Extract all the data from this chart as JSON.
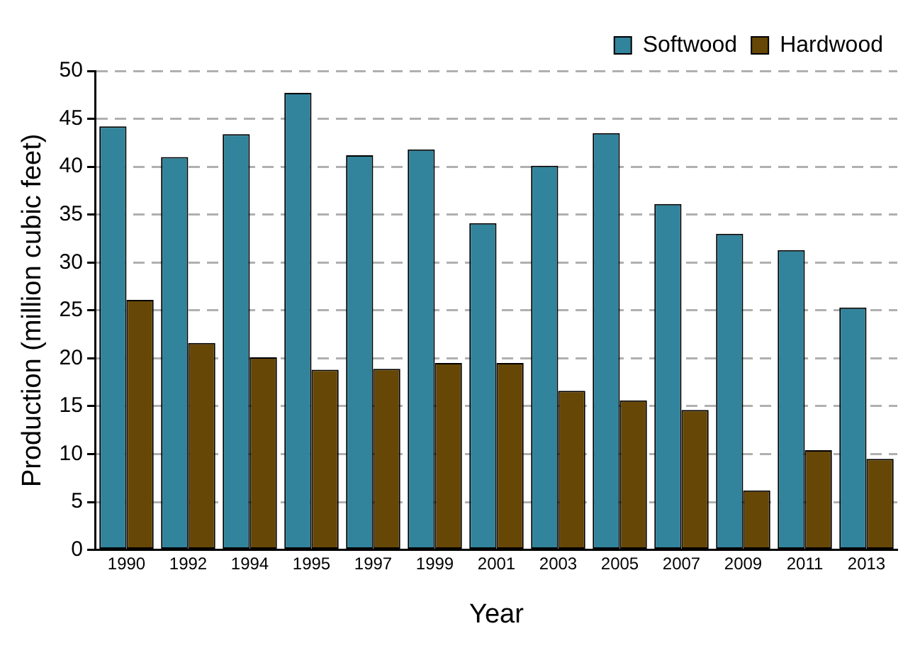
{
  "chart_data": {
    "type": "bar",
    "xlabel": "Year",
    "ylabel": "Production (million cubic feet)",
    "categories": [
      "1990",
      "1992",
      "1994",
      "1995",
      "1997",
      "1999",
      "2001",
      "2003",
      "2005",
      "2007",
      "2009",
      "2011",
      "2013"
    ],
    "series": [
      {
        "name": "Softwood",
        "color": "#31849b",
        "values": [
          44.2,
          41.0,
          43.4,
          47.7,
          41.2,
          41.8,
          34.1,
          40.1,
          43.5,
          36.1,
          33.0,
          31.3,
          25.3
        ]
      },
      {
        "name": "Hardwood",
        "color": "#674706",
        "values": [
          26.1,
          21.6,
          20.1,
          18.8,
          18.9,
          19.5,
          19.5,
          16.6,
          15.6,
          14.6,
          6.2,
          10.4,
          9.5
        ]
      }
    ],
    "ylim": [
      0,
      50
    ],
    "yticks": [
      0,
      5,
      10,
      15,
      20,
      25,
      30,
      35,
      40,
      45,
      50
    ],
    "grid": "y",
    "legend": "top right"
  }
}
